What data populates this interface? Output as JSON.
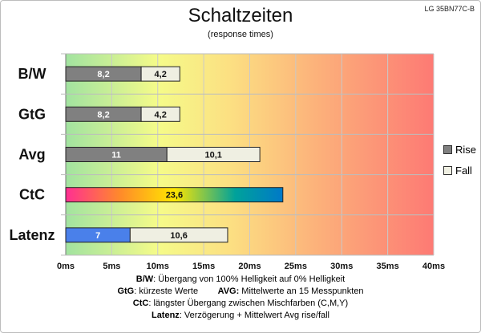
{
  "header": {
    "model": "LG 35BN77C-B",
    "title": "Schaltzeiten",
    "subtitle": "(response times)"
  },
  "legend": {
    "rise": "Rise",
    "fall": "Fall"
  },
  "notes": {
    "line1": {
      "key": "B/W",
      "text": ":  Übergang von 100% Helligkeit auf 0% Helligkeit"
    },
    "line2": {
      "key1": "GtG",
      "text1": ": kürzeste  Werte",
      "key2": "AVG:",
      "text2": " Mittelwerte  an 15 Messpunkten"
    },
    "line3": {
      "key": "CtC",
      "text": ": längster Übergang  zwischen Mischfarben (C,M,Y)"
    },
    "line4": {
      "key": "Latenz",
      "text": ": Verzögerung  + Mittelwert Avg rise/fall"
    }
  },
  "chart_data": {
    "type": "bar",
    "orientation": "horizontal",
    "stacked": true,
    "title": "Schaltzeiten",
    "subtitle": "(response times)",
    "categories": [
      "B/W",
      "GtG",
      "Avg",
      "CtC",
      "Latenz"
    ],
    "series": [
      {
        "name": "Rise",
        "values": [
          8.2,
          8.2,
          11,
          23.6,
          7
        ],
        "labels": [
          "8,2",
          "8,2",
          "11",
          "23,6",
          "7"
        ]
      },
      {
        "name": "Fall",
        "values": [
          4.2,
          4.2,
          10.1,
          null,
          10.6
        ],
        "labels": [
          "4,2",
          "4,2",
          "10,1",
          "",
          "10,6"
        ]
      }
    ],
    "xlim": [
      0,
      40
    ],
    "xticks": [
      0,
      5,
      10,
      15,
      20,
      25,
      30,
      35,
      40
    ],
    "xtick_labels": [
      "0ms",
      "5ms",
      "10ms",
      "15ms",
      "20ms",
      "25ms",
      "30ms",
      "35ms",
      "40ms"
    ],
    "grid": true,
    "legend_position": "right",
    "background": "gradient green-yellow-red",
    "colors": {
      "rise": "#808080",
      "fall": "#efefe2",
      "ctc_gradient": [
        "#ff2f92",
        "#ffb400",
        "#ffff00",
        "#00a29a",
        "#0079c8"
      ],
      "latenz_rise": "#4a80ea"
    }
  }
}
